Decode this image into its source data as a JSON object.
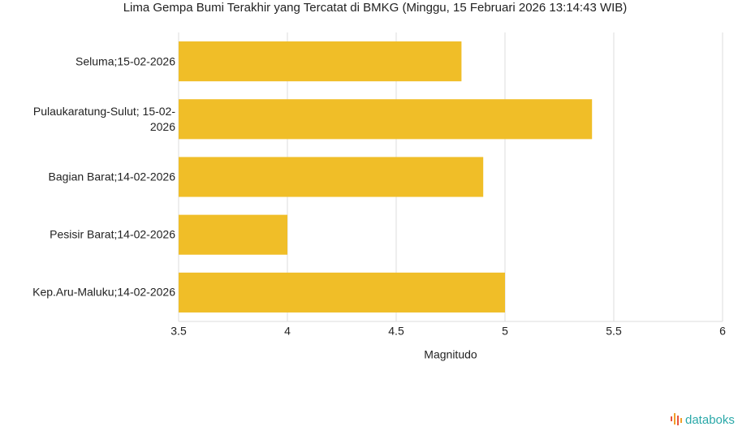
{
  "chart_data": {
    "type": "bar",
    "orientation": "horizontal",
    "title": "Lima Gempa Bumi Terakhir yang Tercatat di BMKG (Minggu, 15 Februari 2026 13:14:43 WIB)",
    "categories": [
      "Seluma;15-02-2026",
      "Pulaukaratung-Sulut; 15-02-2026",
      "Bagian Barat;14-02-2026",
      "Pesisir Barat;14-02-2026",
      "Kep.Aru-Maluku;14-02-2026"
    ],
    "values": [
      4.8,
      5.4,
      4.9,
      4.0,
      5.0
    ],
    "color": "#f0be28",
    "x_label": "Magnitudo",
    "xlim": [
      3.5,
      6
    ],
    "xticks": [
      3.5,
      4,
      4.5,
      5,
      5.5,
      6
    ],
    "grid": true
  },
  "branding": "databoks"
}
